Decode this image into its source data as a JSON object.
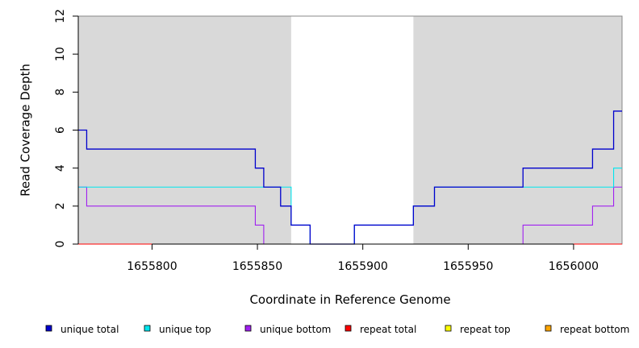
{
  "chart_data": {
    "type": "line",
    "step": true,
    "xlabel": "Coordinate in Reference Genome",
    "ylabel": "Read Coverage Depth",
    "xlim": [
      1655765,
      1656023
    ],
    "ylim": [
      0,
      12
    ],
    "x_ticks": [
      1655800,
      1655850,
      1655900,
      1655950,
      1656000
    ],
    "x_tick_labels": [
      "1655800",
      "1655850",
      "1655900",
      "1655950",
      "1656000"
    ],
    "y_ticks": [
      0,
      2,
      4,
      6,
      8,
      10,
      12
    ],
    "y_tick_labels": [
      "0",
      "2",
      "4",
      "6",
      "8",
      "10",
      "12"
    ],
    "shaded_regions": [
      [
        1655765,
        1655866
      ],
      [
        1655924,
        1656023
      ]
    ],
    "shade_color": "#d9d9d9",
    "legend_placement": "bottom",
    "series": [
      {
        "name": "unique total",
        "color": "#0000cd",
        "x": [
          1655765,
          1655769,
          1655849,
          1655853,
          1655861,
          1655866,
          1655875,
          1655896,
          1655924,
          1655934,
          1655976,
          1656009,
          1656019,
          1656023
        ],
        "y": [
          6,
          5,
          4,
          3,
          2,
          1,
          0,
          1,
          2,
          3,
          4,
          5,
          7,
          7
        ]
      },
      {
        "name": "unique top",
        "color": "#00e5ee",
        "x": [
          1655765,
          1655866,
          1655875,
          1655896,
          1655924,
          1655934,
          1656019,
          1656023
        ],
        "y": [
          3,
          1,
          0,
          1,
          2,
          3,
          4,
          4
        ]
      },
      {
        "name": "unique bottom",
        "color": "#a020f0",
        "x": [
          1655765,
          1655769,
          1655849,
          1655853,
          1655976,
          1656009,
          1656019,
          1656023
        ],
        "y": [
          3,
          2,
          1,
          0,
          1,
          2,
          3,
          3
        ]
      },
      {
        "name": "repeat total",
        "color": "#ff0000",
        "x": [
          1655765,
          1656023
        ],
        "y": [
          0,
          0
        ]
      },
      {
        "name": "repeat top",
        "color": "#ffff00",
        "x": [
          1655765,
          1656023
        ],
        "y": [
          0,
          0
        ]
      },
      {
        "name": "repeat bottom",
        "color": "#ffa500",
        "x": [
          1655765,
          1656023
        ],
        "y": [
          0,
          0
        ]
      }
    ]
  }
}
